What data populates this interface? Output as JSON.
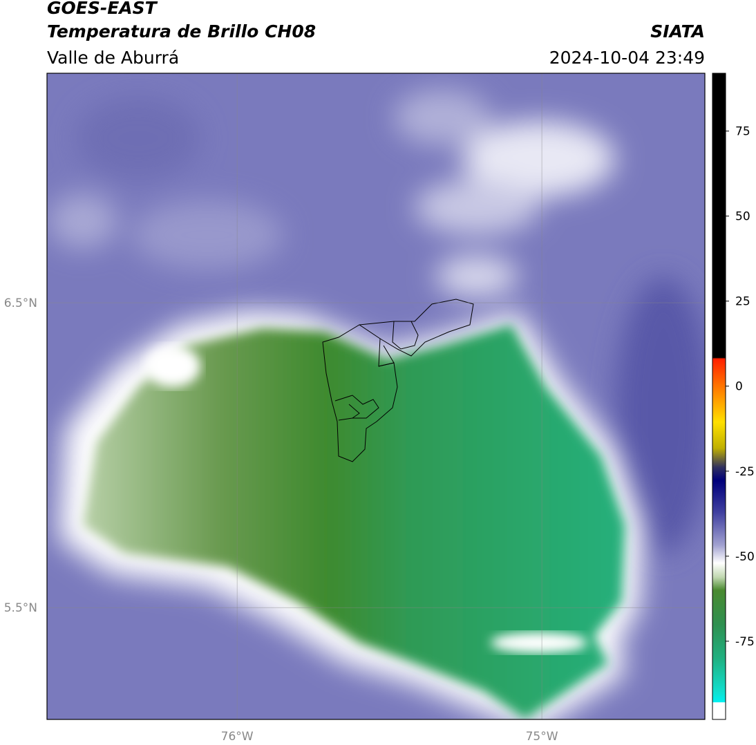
{
  "header": {
    "title": "GOES-EAST",
    "subtitle": "Temperatura de Brillo CH08",
    "source": "SIATA",
    "region": "Valle de Aburrá",
    "datetime": "2024-10-04 23:49"
  },
  "map": {
    "xlim": [
      -76.624,
      -74.465
    ],
    "ylim": [
      5.133,
      7.253
    ],
    "xticks": [
      {
        "value": -76,
        "label": "76°W"
      },
      {
        "value": -75,
        "label": "75°W"
      }
    ],
    "yticks": [
      {
        "value": 6.5,
        "label": "6.5°N"
      },
      {
        "value": 5.5,
        "label": "5.5°N"
      }
    ],
    "grid": true
  },
  "colorbar": {
    "lim": [
      -98,
      92
    ],
    "ticks": [
      75,
      50,
      25,
      0,
      -25,
      -50,
      -75
    ]
  }
}
